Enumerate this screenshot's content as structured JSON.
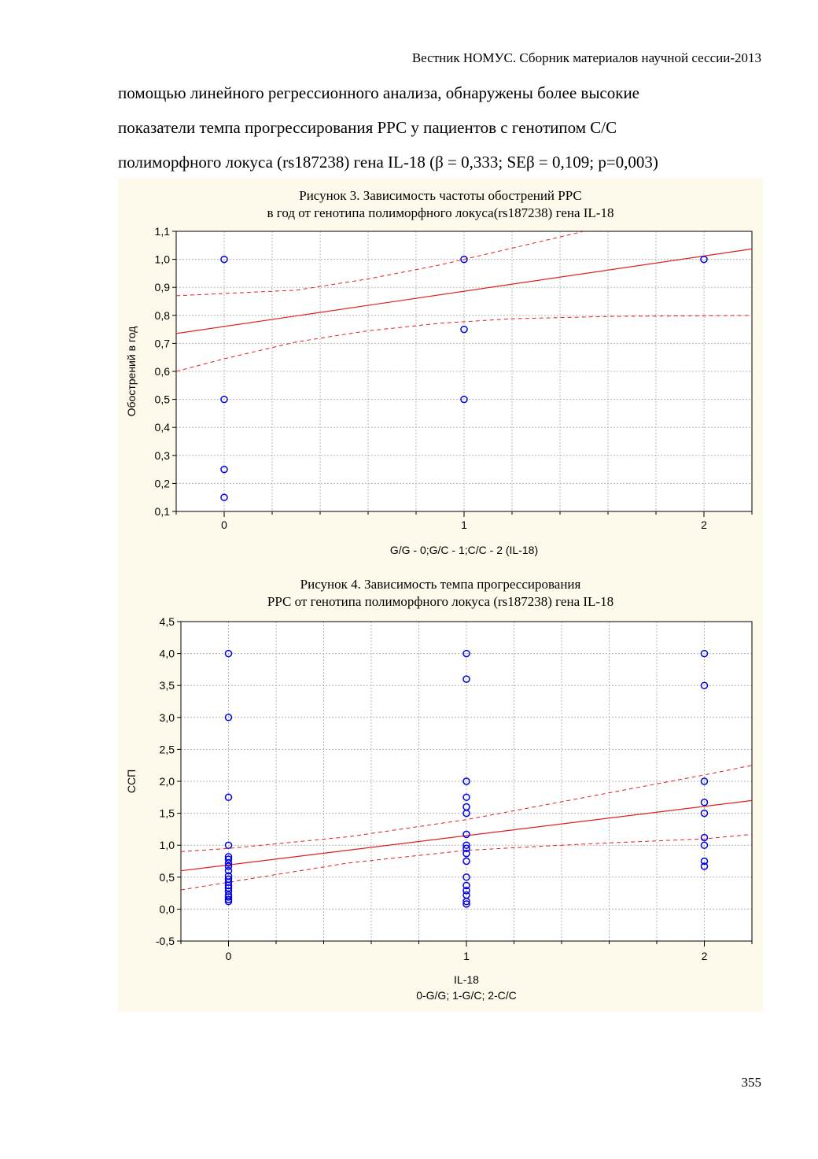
{
  "header": {
    "journal": "Вестник НОМУС. Сборник материалов научной сессии-2013"
  },
  "body": {
    "lines": [
      "помощью линейного регрессионного анализа, обнаружены более высокие",
      "показатели темпа прогрессирования РРС у пациентов с генотипом С/С",
      "полиморфного локуса  (rs187238) гена IL-18 (β = 0,333; SEβ = 0,109; p=0,003)"
    ]
  },
  "figures": [
    {
      "title_lines": [
        "Рисунок 3. Зависимость частоты обострений РРС",
        "в год от генотипа полиморфного локуса(rs187238) гена IL-18"
      ]
    },
    {
      "title_lines": [
        "Рисунок 4. Зависимость темпа прогрессирования",
        "РРС от генотипа полиморфного локуса (rs187238) гена IL-18"
      ]
    }
  ],
  "chart_data": [
    {
      "type": "scatter",
      "title": "Рисунок 3. Зависимость частоты обострений РРС в год от генотипа полиморфного локуса(rs187238) гена IL-18",
      "xlabel": "G/G - 0;G/C - 1;C/C - 2 (IL-18)",
      "xlabel_lines": [
        "G/G - 0;G/C - 1;C/C - 2 (IL-18)"
      ],
      "ylabel": "Обострений в год",
      "xlim": [
        -0.2,
        2.2
      ],
      "ylim": [
        0.1,
        1.1
      ],
      "xticks": [
        0,
        1,
        2
      ],
      "xtick_labels": [
        "0",
        "1",
        "2"
      ],
      "yticks": [
        0.1,
        0.2,
        0.3,
        0.4,
        0.5,
        0.6,
        0.7,
        0.8,
        0.9,
        1.0,
        1.1
      ],
      "ytick_labels": [
        "0,1",
        "0,2",
        "0,3",
        "0,4",
        "0,5",
        "0,6",
        "0,7",
        "0,8",
        "0,9",
        "1,0",
        "1,1"
      ],
      "grid": true,
      "points": [
        [
          0,
          1.0
        ],
        [
          0,
          0.5
        ],
        [
          0,
          0.25
        ],
        [
          0,
          0.15
        ],
        [
          1,
          1.0
        ],
        [
          1,
          0.75
        ],
        [
          1,
          0.5
        ],
        [
          2,
          1.0
        ]
      ],
      "regression_line": [
        [
          -0.2,
          0.735
        ],
        [
          2.2,
          1.037
        ]
      ],
      "confidence_upper": [
        [
          -0.2,
          0.87
        ],
        [
          0,
          0.878
        ],
        [
          0.3,
          0.89
        ],
        [
          0.6,
          0.93
        ],
        [
          0.9,
          0.98
        ],
        [
          1.2,
          1.04
        ],
        [
          1.5,
          1.1
        ]
      ],
      "confidence_lower": [
        [
          -0.2,
          0.6
        ],
        [
          0,
          0.645
        ],
        [
          0.3,
          0.705
        ],
        [
          0.6,
          0.745
        ],
        [
          0.9,
          0.772
        ],
        [
          1.2,
          0.788
        ],
        [
          1.6,
          0.796
        ],
        [
          2.2,
          0.8
        ]
      ],
      "colors": {
        "points": "#0000e6",
        "lines": "#e02020",
        "grid": "#b4b4b4"
      }
    },
    {
      "type": "scatter",
      "title": "Рисунок 4. Зависимость темпа прогрессирования РРС от генотипа полиморфного локуса (rs187238) гена IL-18",
      "xlabel": "IL-18 0-G/G; 1-G/C; 2-C/C",
      "xlabel_lines": [
        "IL-18",
        "0-G/G; 1-G/C; 2-C/C"
      ],
      "ylabel": "ССП",
      "xlim": [
        -0.2,
        2.2
      ],
      "ylim": [
        -0.5,
        4.5
      ],
      "xticks": [
        0,
        1,
        2
      ],
      "xtick_labels": [
        "0",
        "1",
        "2"
      ],
      "yticks": [
        -0.5,
        0.0,
        0.5,
        1.0,
        1.5,
        2.0,
        2.5,
        3.0,
        3.5,
        4.0,
        4.5
      ],
      "ytick_labels": [
        "-0,5",
        "0,0",
        "0,5",
        "1,0",
        "1,5",
        "2,0",
        "2,5",
        "3,0",
        "3,5",
        "4,0",
        "4,5"
      ],
      "grid": true,
      "points": [
        [
          0,
          4.0
        ],
        [
          0,
          3.0
        ],
        [
          0,
          1.75
        ],
        [
          0,
          1.0
        ],
        [
          0,
          0.82
        ],
        [
          0,
          0.78
        ],
        [
          0,
          0.72
        ],
        [
          0,
          0.67
        ],
        [
          0,
          0.6
        ],
        [
          0,
          0.52
        ],
        [
          0,
          0.47
        ],
        [
          0,
          0.42
        ],
        [
          0,
          0.37
        ],
        [
          0,
          0.33
        ],
        [
          0,
          0.28
        ],
        [
          0,
          0.22
        ],
        [
          0,
          0.19
        ],
        [
          0,
          0.15
        ],
        [
          0,
          0.12
        ],
        [
          1,
          4.0
        ],
        [
          1,
          3.6
        ],
        [
          1,
          2.0
        ],
        [
          1,
          1.75
        ],
        [
          1,
          1.6
        ],
        [
          1,
          1.5
        ],
        [
          1,
          1.17
        ],
        [
          1,
          1.0
        ],
        [
          1,
          0.95
        ],
        [
          1,
          0.87
        ],
        [
          1,
          0.75
        ],
        [
          1,
          0.5
        ],
        [
          1,
          0.37
        ],
        [
          1,
          0.29
        ],
        [
          1,
          0.22
        ],
        [
          1,
          0.12
        ],
        [
          1,
          0.08
        ],
        [
          2,
          4.0
        ],
        [
          2,
          3.5
        ],
        [
          2,
          2.0
        ],
        [
          2,
          1.67
        ],
        [
          2,
          1.5
        ],
        [
          2,
          1.12
        ],
        [
          2,
          1.0
        ],
        [
          2,
          0.75
        ],
        [
          2,
          0.67
        ]
      ],
      "regression_line": [
        [
          -0.2,
          0.6
        ],
        [
          2.2,
          1.7
        ]
      ],
      "confidence_upper": [
        [
          -0.2,
          0.9
        ],
        [
          0,
          0.95
        ],
        [
          0.5,
          1.13
        ],
        [
          1,
          1.4
        ],
        [
          1.5,
          1.75
        ],
        [
          2,
          2.1
        ],
        [
          2.2,
          2.25
        ]
      ],
      "confidence_lower": [
        [
          -0.2,
          0.3
        ],
        [
          0,
          0.42
        ],
        [
          0.5,
          0.72
        ],
        [
          1,
          0.92
        ],
        [
          1.5,
          1.02
        ],
        [
          2,
          1.1
        ],
        [
          2.2,
          1.17
        ]
      ],
      "colors": {
        "points": "#0000e6",
        "lines": "#e02020",
        "grid": "#b4b4b4"
      }
    }
  ],
  "page": {
    "number": "355"
  }
}
